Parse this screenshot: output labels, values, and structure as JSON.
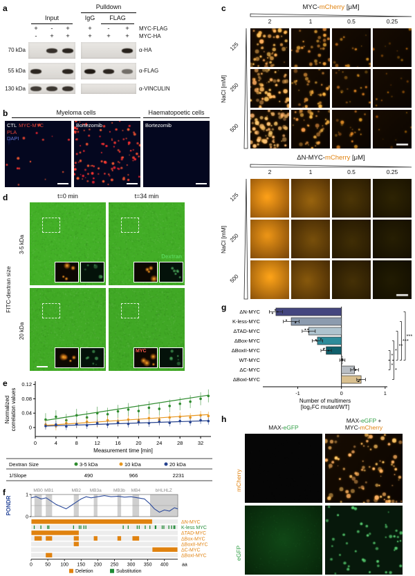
{
  "colors": {
    "mcherry_orange": "#E0820F",
    "egfp_green": "#2F9E44",
    "pla_red": "#E8443A",
    "dapi_label_blue": "#6A79D8",
    "pondr_blue": "#2B4A9B",
    "deletion_orange": "#E0820F",
    "substitution_green": "#1E8A34"
  },
  "panel_a": {
    "label": "a",
    "input_header": "Input",
    "pulldown_header": "Pulldown",
    "igg_header": "IgG",
    "flag_header": "FLAG",
    "construct_rows": [
      {
        "label": "MYC-FLAG",
        "input_signs": [
          "+",
          "-",
          "+"
        ],
        "pulldown_signs": [
          "+",
          "-",
          "+"
        ]
      },
      {
        "label": "MYC-HA",
        "input_signs": [
          "-",
          "+",
          "+"
        ],
        "pulldown_signs": [
          "+",
          "+",
          "+"
        ]
      }
    ],
    "blots": [
      {
        "mw": "70 kDa",
        "antibody": "α-HA",
        "input_bands": [
          0,
          0.85,
          0.9
        ],
        "pulldown_bands": [
          0,
          0,
          0.92
        ]
      },
      {
        "mw": "55 kDa",
        "antibody": "α-FLAG",
        "input_bands": [
          0.9,
          0,
          0.9
        ],
        "pulldown_bands": [
          0.96,
          0.9,
          0.55
        ]
      },
      {
        "mw": "130 kDa",
        "antibody": "α-VINCULIN",
        "input_bands": [
          0.8,
          0.82,
          0.85
        ],
        "pulldown_bands": [
          0,
          0,
          0
        ]
      }
    ]
  },
  "panel_b": {
    "label": "b",
    "group_headers": [
      "Myeloma cells",
      "Haematopoetic cells"
    ],
    "images": [
      {
        "title": "CTL",
        "tags": [
          {
            "text": "MYC-MYC",
            "color_key": "pla_red"
          },
          {
            "text": "PLA",
            "color_key": "pla_red"
          },
          {
            "text": "DAPI",
            "color_key": "dapi_label_blue"
          }
        ],
        "pla_dots": 14,
        "nuclei": 6
      },
      {
        "title": "Bortezomib",
        "tags": [],
        "pla_dots": 110,
        "nuclei": 7
      },
      {
        "title": "Bortezomib",
        "tags": [],
        "pla_dots": 0,
        "nuclei": 6
      }
    ]
  },
  "panel_c": {
    "label": "c",
    "grids": [
      {
        "title": [
          {
            "text": "MYC-"
          },
          {
            "text": "mCherry",
            "color_key": "mcherry_orange"
          },
          {
            "text": " [μM]"
          }
        ],
        "conc_labels": [
          "2",
          "1",
          "0.5",
          "0.25"
        ],
        "nacl_label": "NaCl [mM]",
        "nacl_values": [
          "125",
          "250",
          "500"
        ],
        "style": "puncta",
        "cells": [
          [
            {
              "d": 48,
              "b": 0.8
            },
            {
              "d": 30,
              "b": 0.62
            },
            {
              "d": 16,
              "b": 0.45
            },
            {
              "d": 9,
              "b": 0.3
            }
          ],
          [
            {
              "d": 55,
              "b": 0.85
            },
            {
              "d": 34,
              "b": 0.65
            },
            {
              "d": 18,
              "b": 0.48
            },
            {
              "d": 10,
              "b": 0.3
            }
          ],
          [
            {
              "d": 65,
              "b": 0.95
            },
            {
              "d": 40,
              "b": 0.7
            },
            {
              "d": 20,
              "b": 0.5
            },
            {
              "d": 8,
              "b": 0.26
            }
          ]
        ]
      },
      {
        "title": [
          {
            "text": "ΔN-MYC-"
          },
          {
            "text": "mCherry",
            "color_key": "mcherry_orange"
          },
          {
            "text": " [μM]"
          }
        ],
        "conc_labels": [
          "2",
          "1",
          "0.5",
          "0.25"
        ],
        "nacl_label": "NaCl [mM]",
        "nacl_values": [
          "125",
          "250",
          "500"
        ],
        "style": "diffuse",
        "cells": [
          [
            {
              "b": 0.95
            },
            {
              "b": 0.55
            },
            {
              "b": 0.25
            },
            {
              "b": 0.13
            }
          ],
          [
            {
              "b": 0.88
            },
            {
              "b": 0.42
            },
            {
              "b": 0.2
            },
            {
              "b": 0.1
            }
          ],
          [
            {
              "b": 0.97
            },
            {
              "b": 0.48
            },
            {
              "b": 0.22
            },
            {
              "b": 0.08
            }
          ]
        ]
      }
    ]
  },
  "panel_d": {
    "label": "d",
    "col_headers": [
      "t=0 min",
      "t=34 min"
    ],
    "side_label": "FITC-dextran size",
    "row_labels": [
      "3-5 kDa",
      "20 kDa"
    ],
    "dextran_label": "Dextran",
    "myc_label": "MYC",
    "cells": [
      {
        "base": 0.8
      },
      {
        "base": 0.75,
        "show_dextran": true
      },
      {
        "base": 0.72
      },
      {
        "base": 0.68,
        "show_myc": true
      }
    ]
  },
  "panel_e": {
    "label": "e"
  },
  "panel_f": {
    "label": "f",
    "domains": [
      {
        "name": "MB0",
        "start": 10,
        "end": 32
      },
      {
        "name": "MB1",
        "start": 44,
        "end": 63
      },
      {
        "name": "MB2",
        "start": 128,
        "end": 143
      },
      {
        "name": "MB3a",
        "start": 188,
        "end": 199
      },
      {
        "name": "MB3b",
        "start": 259,
        "end": 270
      },
      {
        "name": "MB4",
        "start": 304,
        "end": 324
      },
      {
        "name": "bHLHLZ",
        "start": 357,
        "end": 439
      }
    ],
    "mutants": [
      {
        "name": "ΔN-MYC",
        "deletions": [
          [
            1,
            363
          ]
        ],
        "substitutions": []
      },
      {
        "name": "K-less MYC",
        "deletions": [],
        "substitutions": [
          8,
          28,
          48,
          52,
          126,
          143,
          148,
          157,
          163,
          275,
          290,
          317,
          323,
          341,
          355,
          371,
          373,
          392,
          397,
          412,
          420,
          427,
          430
        ]
      },
      {
        "name": "ΔTAD-MYC",
        "deletions": [
          [
            1,
            143
          ]
        ],
        "substitutions": []
      },
      {
        "name": "ΔBox-MYC",
        "deletions": [
          [
            10,
            32
          ],
          [
            44,
            63
          ],
          [
            128,
            143
          ],
          [
            188,
            199
          ],
          [
            259,
            270
          ],
          [
            304,
            324
          ]
        ],
        "substitutions": []
      },
      {
        "name": "ΔBoxII-MYC",
        "deletions": [
          [
            128,
            143
          ]
        ],
        "substitutions": []
      },
      {
        "name": "ΔC-MYC",
        "deletions": [
          [
            364,
            439
          ]
        ],
        "substitutions": []
      },
      {
        "name": "ΔBoxI-MYC",
        "deletions": [
          [
            44,
            63
          ]
        ],
        "substitutions": []
      }
    ],
    "legend": [
      {
        "label": "Deletion",
        "color_key": "deletion_orange"
      },
      {
        "label": "Substitution",
        "color_key": "substitution_green"
      }
    ]
  },
  "panel_g": {
    "label": "g"
  },
  "panel_h": {
    "label": "h",
    "col1_header": [
      {
        "text": "MAX-"
      },
      {
        "text": "eGFP",
        "color_key": "egfp_green"
      }
    ],
    "col2_header_line1": [
      {
        "text": "MAX-"
      },
      {
        "text": "eGFP",
        "color_key": "egfp_green"
      },
      {
        "text": " +"
      }
    ],
    "col2_header_line2": [
      {
        "text": "MYC-"
      },
      {
        "text": "mCherry",
        "color_key": "mcherry_orange"
      }
    ],
    "row_labels": [
      [
        {
          "text": "mCherry",
          "color_key": "mcherry_orange"
        }
      ],
      [
        {
          "text": "eGFP",
          "color_key": "egfp_green"
        }
      ]
    ],
    "cells": [
      [
        {
          "style": "black",
          "d": 0
        },
        {
          "style": "orange_puncta",
          "d": 85
        }
      ],
      [
        {
          "style": "green_diffuse",
          "d": 0
        },
        {
          "style": "green_puncta",
          "d": 45
        }
      ]
    ]
  },
  "chart_data": [
    {
      "id": "panel_e",
      "type": "scatter",
      "xlabel": "Measurement time [min]",
      "ylabel": "Normalized correlation values",
      "ylabel_lines": [
        "Normalized",
        "correlation values"
      ],
      "xlim": [
        0,
        34
      ],
      "ylim": [
        -0.025,
        0.125
      ],
      "xticks": [
        0,
        4,
        8,
        12,
        16,
        20,
        24,
        28,
        32
      ],
      "yticks": [
        0,
        0.04,
        0.08,
        0.12
      ],
      "x": [
        2,
        4,
        6,
        8,
        10,
        12,
        14,
        16,
        18,
        20,
        22,
        24,
        26,
        28,
        30,
        32,
        33.5
      ],
      "series": [
        {
          "name": "3-5 kDa",
          "color": "#2E8B2E",
          "inv_slope": 490,
          "err": 0.018,
          "fit": [
            0.02,
            0.09
          ],
          "y": [
            0.022,
            0.03,
            0.02,
            0.034,
            0.028,
            0.04,
            0.037,
            0.045,
            0.05,
            0.046,
            0.055,
            0.052,
            0.06,
            0.066,
            0.072,
            0.08,
            0.088
          ]
        },
        {
          "name": "10 kDa",
          "color": "#E8961E",
          "inv_slope": 966,
          "err": 0.012,
          "fit": [
            0.006,
            0.036
          ],
          "y": [
            0.008,
            0.004,
            0.012,
            0.01,
            0.016,
            0.012,
            0.02,
            0.016,
            0.022,
            0.02,
            0.026,
            0.022,
            0.028,
            0.03,
            0.028,
            0.034,
            0.032
          ]
        },
        {
          "name": "20 kDa",
          "color": "#24418E",
          "inv_slope": 2231,
          "err": 0.01,
          "fit": [
            0.004,
            0.019
          ],
          "y": [
            0.004,
            0.008,
            0.003,
            0.009,
            0.006,
            0.012,
            0.008,
            0.013,
            0.01,
            0.015,
            0.012,
            0.016,
            0.013,
            0.018,
            0.015,
            0.02,
            0.018
          ]
        }
      ],
      "table": {
        "header_label": "Dextran Size",
        "slope_label": "1/Slope"
      }
    },
    {
      "id": "panel_f",
      "type": "line",
      "ylabel": "PONDR",
      "yticks": [
        0,
        1
      ],
      "threshold": 0.5,
      "xlim": [
        0,
        440
      ],
      "xticks": [
        0,
        50,
        100,
        150,
        200,
        250,
        300,
        350,
        400
      ],
      "x_unit": "aa",
      "x": [
        0,
        15,
        30,
        45,
        60,
        75,
        90,
        105,
        120,
        135,
        150,
        165,
        180,
        200,
        220,
        240,
        260,
        280,
        300,
        320,
        340,
        355,
        370,
        385,
        400,
        415,
        430,
        440
      ],
      "y": [
        0.85,
        0.9,
        0.8,
        0.85,
        0.7,
        0.55,
        0.45,
        0.35,
        0.5,
        0.65,
        0.8,
        0.9,
        0.85,
        0.9,
        0.95,
        0.9,
        0.92,
        0.88,
        0.9,
        0.85,
        0.8,
        0.6,
        0.35,
        0.2,
        0.3,
        0.25,
        0.4,
        0.35
      ]
    },
    {
      "id": "panel_g",
      "type": "bar",
      "orientation": "horizontal",
      "categories": [
        "ΔN-MYC",
        "K-less-MYC",
        "ΔTAD-MYC",
        "ΔBox-MYC",
        "ΔBoxII-MYC",
        "WT-MYC",
        "ΔC-MYC",
        "ΔBoxI-MYC"
      ],
      "values": [
        -1.5,
        -1.15,
        -0.75,
        -0.55,
        -0.35,
        0.02,
        0.3,
        0.45
      ],
      "errors": [
        0.15,
        0.18,
        0.15,
        0.12,
        0.12,
        0.06,
        0.09,
        0.1
      ],
      "colors": [
        "#44467F",
        "#8C9BAE",
        "#AFC3CE",
        "#2E8B9A",
        "#0F5F6B",
        "#FFFFFF",
        "#B9BEC4",
        "#D9C08F"
      ],
      "xlabel_line1": "Number of multimers",
      "xlabel_line2": "[log₂FC mutant/WT]",
      "xticks": [
        -1,
        0,
        1
      ],
      "xlim": [
        -1.8,
        1.05
      ],
      "significance": [
        {
          "from": 4,
          "to": 5,
          "label": "*",
          "level": 0
        },
        {
          "from": 3,
          "to": 5,
          "label": "*",
          "level": 1
        },
        {
          "from": 2,
          "to": 5,
          "label": "**",
          "level": 2
        },
        {
          "from": 1,
          "to": 5,
          "label": "***",
          "level": 3
        },
        {
          "from": 0,
          "to": 5,
          "label": "***",
          "level": 4
        },
        {
          "from": 5,
          "to": 6,
          "label": "*",
          "level": 0
        },
        {
          "from": 5,
          "to": 7,
          "label": "*",
          "level": 1
        }
      ]
    }
  ]
}
